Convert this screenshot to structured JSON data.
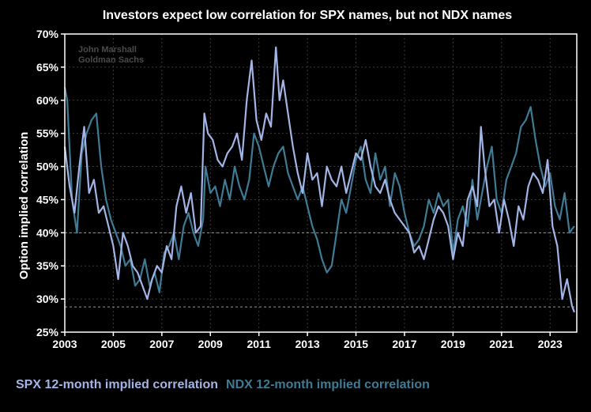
{
  "chart_data": {
    "type": "line",
    "title": "Investors expect low correlation for SPX names, but not NDX names",
    "ylabel": "Option implied correlation",
    "xlabel": "",
    "watermark": [
      "John Marshall",
      "Goldman Sachs"
    ],
    "x_ticks": [
      "2003",
      "2005",
      "2007",
      "2009",
      "2011",
      "2013",
      "2015",
      "2017",
      "2019",
      "2021",
      "2023"
    ],
    "y_ticks": [
      "25%",
      "30%",
      "35%",
      "40%",
      "45%",
      "50%",
      "55%",
      "60%",
      "65%",
      "70%"
    ],
    "xlim": [
      2003,
      2024.1
    ],
    "ylim": [
      25,
      70
    ],
    "grid": true,
    "legend_position": "bottom",
    "reference_lines": [
      40,
      28.8
    ],
    "series": [
      {
        "name": "SPX 12-month implied correlation",
        "color": "#a3b4e6",
        "x": [
          2003.0,
          2003.2,
          2003.4,
          2003.6,
          2003.8,
          2004.0,
          2004.2,
          2004.4,
          2004.6,
          2004.8,
          2005.0,
          2005.2,
          2005.4,
          2005.6,
          2005.8,
          2006.0,
          2006.2,
          2006.4,
          2006.6,
          2006.8,
          2007.0,
          2007.2,
          2007.4,
          2007.6,
          2007.8,
          2008.0,
          2008.2,
          2008.4,
          2008.6,
          2008.75,
          2008.9,
          2009.1,
          2009.3,
          2009.5,
          2009.7,
          2009.9,
          2010.1,
          2010.3,
          2010.5,
          2010.7,
          2010.9,
          2011.1,
          2011.3,
          2011.5,
          2011.7,
          2011.85,
          2012.0,
          2012.2,
          2012.4,
          2012.6,
          2012.8,
          2013.0,
          2013.2,
          2013.4,
          2013.6,
          2013.8,
          2014.0,
          2014.2,
          2014.4,
          2014.6,
          2014.8,
          2015.0,
          2015.2,
          2015.4,
          2015.6,
          2015.8,
          2016.0,
          2016.2,
          2016.4,
          2016.6,
          2016.8,
          2017.0,
          2017.2,
          2017.4,
          2017.6,
          2017.8,
          2018.0,
          2018.2,
          2018.4,
          2018.6,
          2018.8,
          2019.0,
          2019.2,
          2019.4,
          2019.6,
          2019.8,
          2020.0,
          2020.15,
          2020.3,
          2020.5,
          2020.7,
          2020.9,
          2021.1,
          2021.3,
          2021.5,
          2021.7,
          2021.9,
          2022.1,
          2022.3,
          2022.5,
          2022.7,
          2022.9,
          2023.1,
          2023.3,
          2023.5,
          2023.7,
          2023.9,
          2024.0
        ],
        "values": [
          53,
          47,
          43,
          50,
          56,
          46,
          48,
          43,
          44,
          41,
          38,
          33,
          40,
          38,
          35,
          34,
          32,
          30,
          33,
          35,
          34,
          38,
          36,
          44,
          47,
          43,
          46,
          40,
          41,
          58,
          55,
          54,
          51,
          50,
          52,
          53,
          55,
          51,
          60,
          66,
          57,
          54,
          58,
          56,
          68,
          60,
          63,
          58,
          53,
          49,
          46,
          52,
          48,
          49,
          44,
          50,
          48,
          47,
          50,
          46,
          49,
          52,
          51,
          54,
          50,
          47,
          46,
          48,
          45,
          43,
          42,
          41,
          40,
          37,
          38,
          36,
          39,
          42,
          44,
          43,
          41,
          36,
          40,
          38,
          45,
          47,
          44,
          56,
          50,
          44,
          45,
          40,
          45,
          42,
          38,
          44,
          42,
          47,
          49,
          48,
          46,
          51,
          41,
          38,
          30,
          33,
          29,
          28
        ]
      },
      {
        "name": "NDX 12-month implied correlation",
        "color": "#3f7b94",
        "x": [
          2003.0,
          2003.1,
          2003.3,
          2003.5,
          2003.7,
          2003.9,
          2004.1,
          2004.3,
          2004.5,
          2004.7,
          2004.9,
          2005.1,
          2005.3,
          2005.5,
          2005.7,
          2005.9,
          2006.1,
          2006.3,
          2006.5,
          2006.7,
          2006.9,
          2007.1,
          2007.3,
          2007.5,
          2007.7,
          2007.9,
          2008.1,
          2008.3,
          2008.5,
          2008.7,
          2008.8,
          2009.0,
          2009.2,
          2009.4,
          2009.6,
          2009.8,
          2010.0,
          2010.2,
          2010.4,
          2010.6,
          2010.8,
          2011.0,
          2011.2,
          2011.4,
          2011.6,
          2011.8,
          2012.0,
          2012.2,
          2012.4,
          2012.6,
          2012.8,
          2013.0,
          2013.2,
          2013.4,
          2013.6,
          2013.8,
          2014.0,
          2014.2,
          2014.4,
          2014.6,
          2014.8,
          2015.0,
          2015.2,
          2015.4,
          2015.6,
          2015.8,
          2016.0,
          2016.2,
          2016.4,
          2016.6,
          2016.8,
          2017.0,
          2017.2,
          2017.4,
          2017.6,
          2017.8,
          2018.0,
          2018.2,
          2018.4,
          2018.6,
          2018.8,
          2019.0,
          2019.2,
          2019.4,
          2019.6,
          2019.8,
          2020.0,
          2020.2,
          2020.4,
          2020.6,
          2020.8,
          2021.0,
          2021.2,
          2021.4,
          2021.6,
          2021.8,
          2022.0,
          2022.2,
          2022.4,
          2022.6,
          2022.8,
          2023.0,
          2023.2,
          2023.4,
          2023.6,
          2023.8,
          2024.0
        ],
        "values": [
          62,
          60,
          45,
          40,
          52,
          55,
          57,
          58,
          50,
          45,
          42,
          40,
          38,
          35,
          36,
          32,
          33,
          36,
          32,
          34,
          31,
          37,
          38,
          40,
          36,
          41,
          43,
          40,
          38,
          42,
          50,
          46,
          47,
          44,
          48,
          45,
          50,
          47,
          45,
          48,
          55,
          53,
          50,
          47,
          50,
          52,
          53,
          49,
          47,
          45,
          47,
          44,
          41,
          39,
          36,
          34,
          35,
          40,
          45,
          43,
          47,
          51,
          53,
          48,
          46,
          52,
          48,
          50,
          44,
          49,
          47,
          43,
          40,
          38,
          39,
          41,
          45,
          43,
          46,
          44,
          45,
          37,
          42,
          44,
          41,
          48,
          42,
          46,
          50,
          53,
          45,
          43,
          48,
          50,
          52,
          56,
          57,
          59,
          54,
          50,
          47,
          49,
          44,
          42,
          46,
          40,
          41
        ]
      }
    ]
  }
}
